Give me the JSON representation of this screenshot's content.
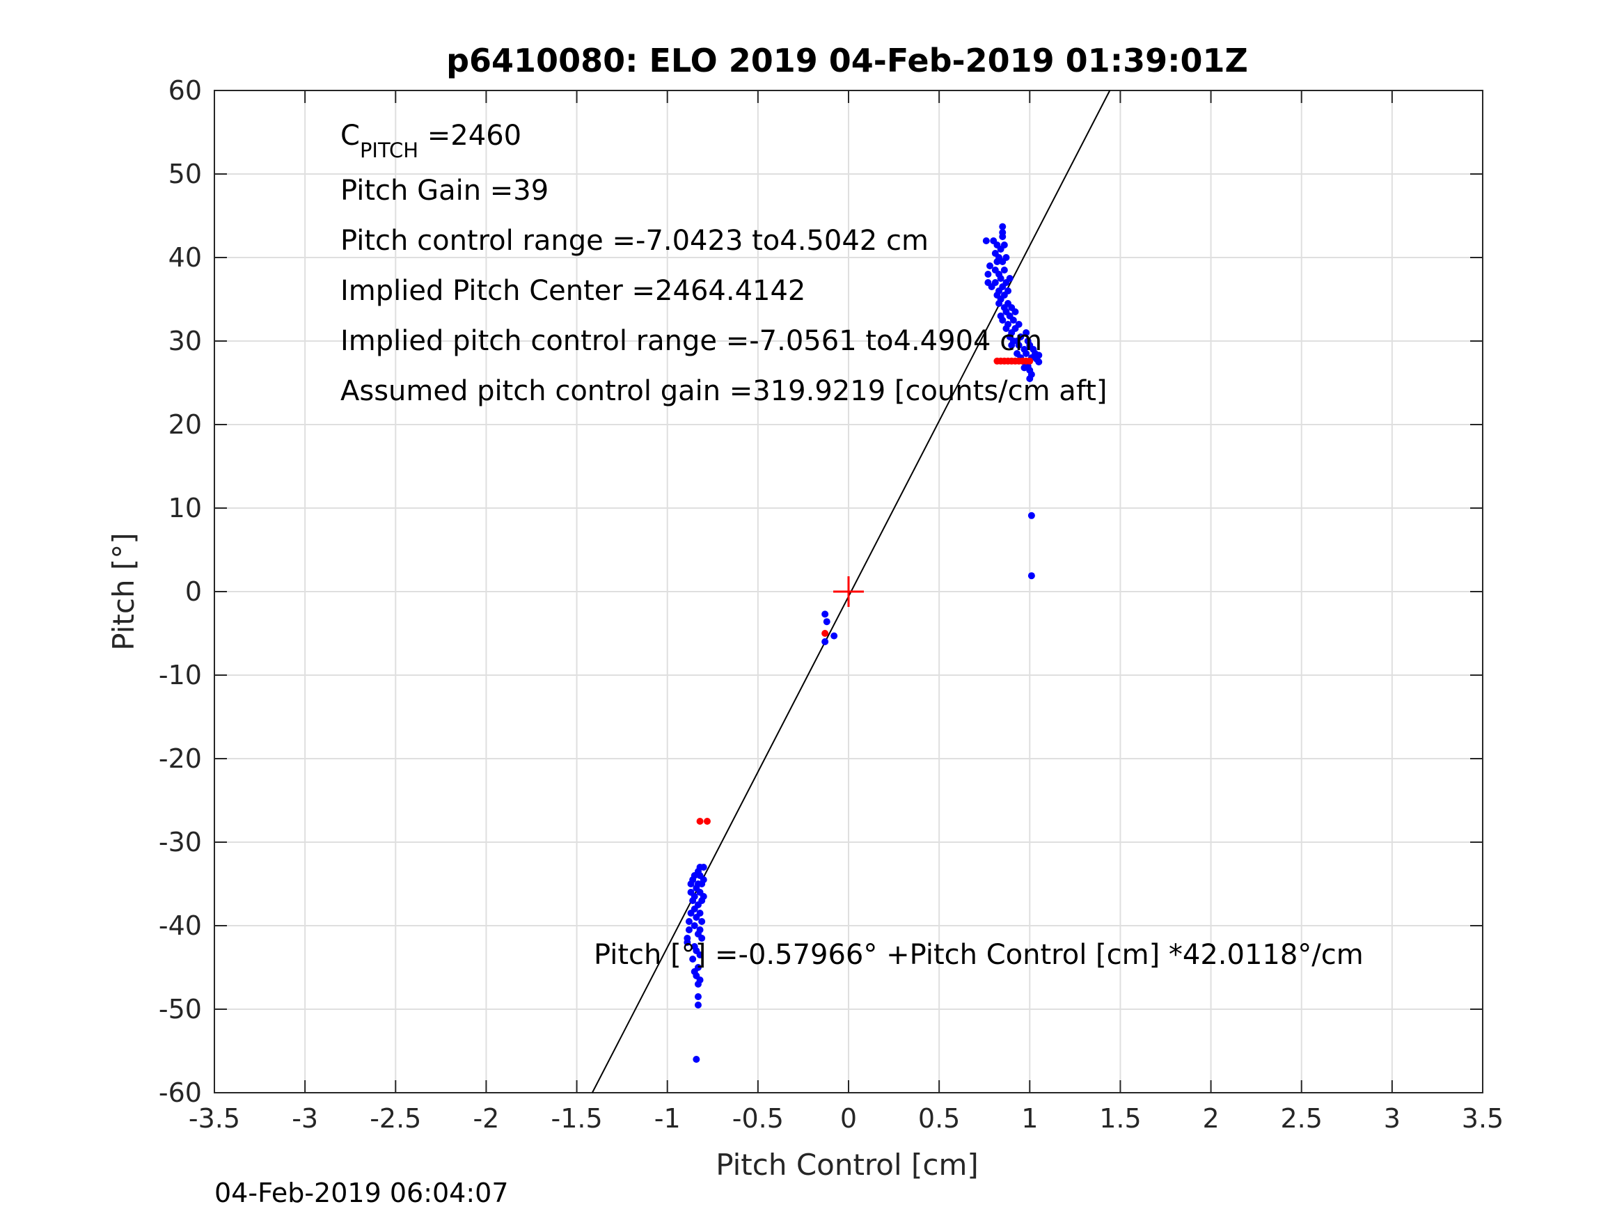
{
  "chart_data": {
    "type": "scatter",
    "title": "p6410080: ELO 2019 04-Feb-2019 01:39:01Z",
    "xlabel": "Pitch Control [cm]",
    "ylabel": "Pitch [°]",
    "xlim": [
      -3.5,
      3.5
    ],
    "ylim": [
      -60,
      60
    ],
    "xticks": [
      -3.5,
      -3,
      -2.5,
      -2,
      -1.5,
      -1,
      -0.5,
      0,
      0.5,
      1,
      1.5,
      2,
      2.5,
      3,
      3.5
    ],
    "yticks": [
      -60,
      -50,
      -40,
      -30,
      -20,
      -10,
      0,
      10,
      20,
      30,
      40,
      50,
      60
    ],
    "xtick_labels": [
      "-3.5",
      "-3",
      "-2.5",
      "-2",
      "-1.5",
      "-1",
      "-0.5",
      "0",
      "0.5",
      "1",
      "1.5",
      "2",
      "2.5",
      "3",
      "3.5"
    ],
    "ytick_labels": [
      "-60",
      "-50",
      "-40",
      "-30",
      "-20",
      "-10",
      "0",
      "10",
      "20",
      "30",
      "40",
      "50",
      "60"
    ],
    "grid": true,
    "fit_line": {
      "intercept": -0.57966,
      "slope": 42.0118
    },
    "center_marker": {
      "x": 0,
      "y": 0,
      "color": "#ff0000"
    },
    "series": [
      {
        "color": "#0000ff",
        "points": [
          [
            -0.89,
            -42
          ],
          [
            -0.89,
            -41.5
          ],
          [
            -0.88,
            -40.5
          ],
          [
            -0.88,
            -39.5
          ],
          [
            -0.87,
            -38.5
          ],
          [
            -0.87,
            -35
          ],
          [
            -0.87,
            -36
          ],
          [
            -0.86,
            -37
          ],
          [
            -0.86,
            -34.5
          ],
          [
            -0.86,
            -44
          ],
          [
            -0.85,
            -45.5
          ],
          [
            -0.85,
            -42.5
          ],
          [
            -0.85,
            -40
          ],
          [
            -0.85,
            -38
          ],
          [
            -0.85,
            -36.5
          ],
          [
            -0.85,
            -34
          ],
          [
            -0.84,
            -35.5
          ],
          [
            -0.84,
            -39
          ],
          [
            -0.84,
            -43
          ],
          [
            -0.84,
            -46
          ],
          [
            -0.83,
            -47
          ],
          [
            -0.83,
            -48.5
          ],
          [
            -0.83,
            -49.5
          ],
          [
            -0.83,
            -45
          ],
          [
            -0.83,
            -41
          ],
          [
            -0.83,
            -37.5
          ],
          [
            -0.83,
            -35
          ],
          [
            -0.83,
            -33.5
          ],
          [
            -0.82,
            -34
          ],
          [
            -0.82,
            -36
          ],
          [
            -0.82,
            -38.5
          ],
          [
            -0.82,
            -40.5
          ],
          [
            -0.82,
            -43.5
          ],
          [
            -0.82,
            -46.5
          ],
          [
            -0.82,
            -33
          ],
          [
            -0.81,
            -35
          ],
          [
            -0.81,
            -37
          ],
          [
            -0.81,
            -39.5
          ],
          [
            -0.81,
            -41.5
          ],
          [
            -0.8,
            -33
          ],
          [
            -0.8,
            -34.5
          ],
          [
            -0.8,
            -36.5
          ],
          [
            -0.84,
            -56
          ],
          [
            -0.13,
            -2.7
          ],
          [
            -0.12,
            -3.6
          ],
          [
            -0.08,
            -5.3
          ],
          [
            -0.13,
            -6.0
          ],
          [
            0.76,
            42
          ],
          [
            0.77,
            38
          ],
          [
            0.77,
            37
          ],
          [
            0.78,
            39
          ],
          [
            0.79,
            36.5
          ],
          [
            0.8,
            42
          ],
          [
            0.81,
            40.5
          ],
          [
            0.81,
            38.5
          ],
          [
            0.81,
            37
          ],
          [
            0.82,
            35.5
          ],
          [
            0.82,
            41.5
          ],
          [
            0.82,
            39.5
          ],
          [
            0.83,
            38
          ],
          [
            0.83,
            36
          ],
          [
            0.83,
            34.5
          ],
          [
            0.83,
            40
          ],
          [
            0.84,
            41
          ],
          [
            0.84,
            37.5
          ],
          [
            0.84,
            35
          ],
          [
            0.84,
            33
          ],
          [
            0.85,
            43
          ],
          [
            0.85,
            43.7
          ],
          [
            0.85,
            42.5
          ],
          [
            0.85,
            39.5
          ],
          [
            0.85,
            36.5
          ],
          [
            0.85,
            32.5
          ],
          [
            0.86,
            41.5
          ],
          [
            0.86,
            38.5
          ],
          [
            0.86,
            35.5
          ],
          [
            0.86,
            34
          ],
          [
            0.87,
            40
          ],
          [
            0.87,
            37
          ],
          [
            0.87,
            33.5
          ],
          [
            0.87,
            31.5
          ],
          [
            0.88,
            36
          ],
          [
            0.88,
            34.5
          ],
          [
            0.88,
            32
          ],
          [
            0.89,
            37.5
          ],
          [
            0.89,
            33
          ],
          [
            0.89,
            30.5
          ],
          [
            0.9,
            34
          ],
          [
            0.9,
            31
          ],
          [
            0.9,
            29.5
          ],
          [
            0.91,
            32.5
          ],
          [
            0.91,
            30
          ],
          [
            0.92,
            33.5
          ],
          [
            0.92,
            31.5
          ],
          [
            0.93,
            30
          ],
          [
            0.93,
            28.5
          ],
          [
            0.94,
            32
          ],
          [
            0.94,
            29.5
          ],
          [
            0.95,
            30.5
          ],
          [
            0.95,
            28
          ],
          [
            0.97,
            29
          ],
          [
            0.97,
            27.5
          ],
          [
            0.98,
            31
          ],
          [
            0.98,
            28.5
          ],
          [
            0.99,
            30
          ],
          [
            0.99,
            27
          ],
          [
            1.0,
            29.5
          ],
          [
            1.0,
            26.5
          ],
          [
            1.0,
            25.5
          ],
          [
            1.01,
            28
          ],
          [
            1.01,
            26
          ],
          [
            1.02,
            29
          ],
          [
            1.03,
            28.5
          ],
          [
            1.04,
            27.8
          ],
          [
            1.05,
            28.3
          ],
          [
            1.05,
            27.5
          ],
          [
            0.97,
            26.8
          ],
          [
            1.01,
            9.1
          ],
          [
            1.01,
            1.9
          ]
        ]
      },
      {
        "color": "#ff0000",
        "points": [
          [
            -0.82,
            -27.5
          ],
          [
            -0.78,
            -27.5
          ],
          [
            -0.13,
            -5.0
          ],
          [
            0.82,
            27.6
          ],
          [
            0.84,
            27.6
          ],
          [
            0.86,
            27.6
          ],
          [
            0.88,
            27.6
          ],
          [
            0.9,
            27.6
          ],
          [
            0.92,
            27.6
          ],
          [
            0.94,
            27.6
          ],
          [
            0.96,
            27.6
          ],
          [
            0.98,
            27.6
          ],
          [
            1.0,
            27.6
          ]
        ]
      }
    ],
    "annotations": {
      "cpitch_symbol": "C",
      "cpitch_subscript": "PITCH",
      "cpitch_value": " =2460",
      "pitch_gain": "Pitch Gain =39",
      "control_range": "Pitch control range =-7.0423 to4.5042 cm",
      "implied_center": "Implied Pitch Center =2464.4142",
      "implied_range": "Implied pitch control range =-7.0561 to4.4904 cm",
      "assumed_gain": "Assumed pitch control gain =319.9219 [counts/cm aft]",
      "equation": "Pitch [°] =-0.57966° +Pitch Control [cm] *42.0118°/cm"
    },
    "timestamp": "04-Feb-2019 06:04:07"
  }
}
